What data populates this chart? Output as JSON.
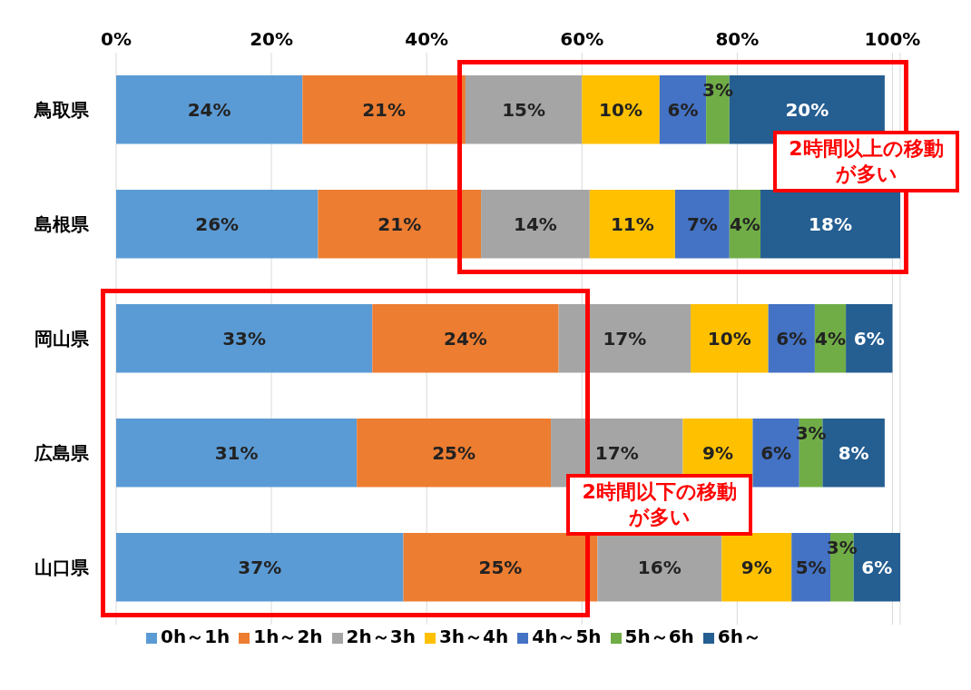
{
  "chart_data": {
    "type": "bar",
    "orientation": "horizontal",
    "stacked": true,
    "categories": [
      "鳥取県",
      "島根県",
      "岡山県",
      "広島県",
      "山口県"
    ],
    "series": [
      {
        "name": "0h～1h",
        "color": "#5b9bd5",
        "values": [
          24,
          26,
          33,
          31,
          37
        ],
        "value_labels": [
          "24%",
          "26%",
          "33%",
          "31%",
          "37%"
        ]
      },
      {
        "name": "1h～2h",
        "color": "#ed7d31",
        "values": [
          21,
          21,
          24,
          25,
          25
        ],
        "value_labels": [
          "21%",
          "21%",
          "24%",
          "25%",
          "25%"
        ]
      },
      {
        "name": "2h～3h",
        "color": "#a5a5a5",
        "values": [
          15,
          14,
          17,
          17,
          16
        ],
        "value_labels": [
          "15%",
          "14%",
          "17%",
          "17%",
          "16%"
        ]
      },
      {
        "name": "3h～4h",
        "color": "#ffc000",
        "values": [
          10,
          11,
          10,
          9,
          9
        ],
        "value_labels": [
          "10%",
          "11%",
          "10%",
          "9%",
          "9%"
        ]
      },
      {
        "name": "4h～5h",
        "color": "#4472c4",
        "values": [
          6,
          7,
          6,
          6,
          5
        ],
        "value_labels": [
          "6%",
          "7%",
          "6%",
          "6%",
          "5%"
        ]
      },
      {
        "name": "5h～6h",
        "color": "#70ad47",
        "values": [
          3,
          4,
          4,
          3,
          3
        ],
        "value_labels": [
          "3%",
          "4%",
          "4%",
          "3%",
          "3%"
        ]
      },
      {
        "name": "6h～",
        "color": "#255e91",
        "values": [
          20,
          18,
          6,
          8,
          6
        ],
        "value_labels": [
          "20%",
          "18%",
          "6%",
          "8%",
          "6%"
        ]
      }
    ],
    "xlim": [
      0,
      101
    ],
    "xticks": [
      {
        "value": 0,
        "label": "0%"
      },
      {
        "value": 20,
        "label": "20%"
      },
      {
        "value": 40,
        "label": "40%"
      },
      {
        "value": 60,
        "label": "60%"
      },
      {
        "value": 80,
        "label": "80%"
      },
      {
        "value": 100,
        "label": "100%"
      }
    ],
    "grid": "x",
    "legend": "bottom",
    "annotations": [
      "2時間以上の移動が多い",
      "2時間以下の移動が多い"
    ]
  }
}
